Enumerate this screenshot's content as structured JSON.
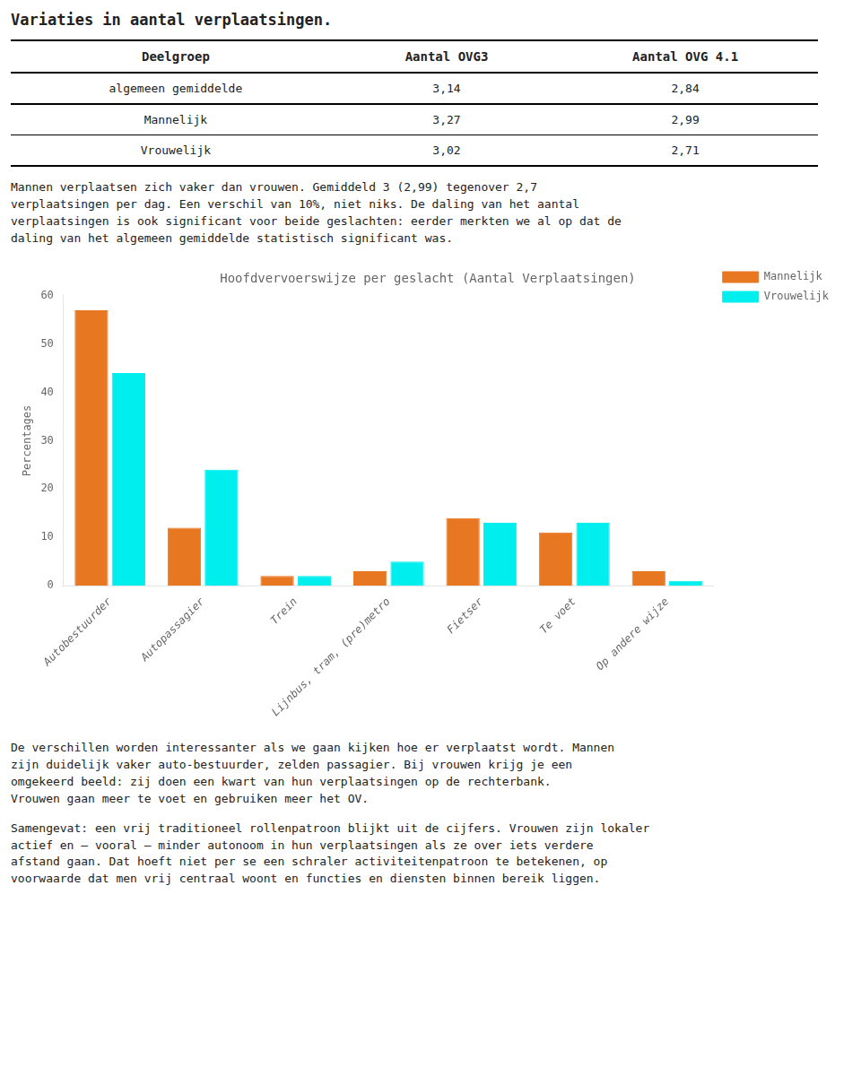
{
  "page_title": "Variaties in aantal verplaatsingen.",
  "table": {
    "headers": [
      "Deelgroep",
      "Aantal OVG3",
      "Aantal OVG 4.1"
    ],
    "rows": [
      [
        "algemeen gemiddelde",
        "3,14",
        "2,84"
      ],
      [
        "Mannelijk",
        "3,27",
        "2,99"
      ],
      [
        "Vrouwelijk",
        "3,02",
        "2,71"
      ]
    ]
  },
  "paragraphs_before": [
    [
      "Mannen verplaatsen zich vaker dan vrouwen. Gemiddeld 3 (2,99) tegenover 2,7",
      "verplaatsingen per dag. Een verschil van 10%, niet niks. De daling van het aantal",
      "verplaatsingen is ook significant voor beide geslachten: eerder merkten we al op dat de",
      "daling van het algemeen gemiddelde statistisch significant was."
    ]
  ],
  "chart_data": {
    "type": "bar",
    "title": "Hoofdvervoerswijze per geslacht (Aantal Verplaatsingen)",
    "categories": [
      "Autobestuurder",
      "Autopassagier",
      "Trein",
      "Lijnbus, tram, (pre)metro",
      "Fietser",
      "Te voet",
      "Op andere wijze"
    ],
    "series": [
      {
        "name": "Mannelijk",
        "color": "#E87722",
        "values": [
          57,
          12,
          2,
          3,
          14,
          11,
          3
        ]
      },
      {
        "name": "Vrouwelijk",
        "color": "#00EEEE",
        "values": [
          44,
          24,
          2,
          5,
          13,
          13,
          1
        ]
      }
    ],
    "ylabel": "Percentages",
    "ylim": [
      0,
      60
    ],
    "yticks": [
      0,
      10,
      20,
      30,
      40,
      50,
      60
    ],
    "grid": false,
    "legend": "right"
  },
  "paragraphs_after": [
    [
      "De verschillen worden interessanter als we gaan kijken hoe er verplaatst wordt. Mannen",
      "zijn duidelijk vaker auto-bestuurder, zelden passagier. Bij vrouwen krijg je een",
      "omgekeerd beeld: zij doen een kwart van hun verplaatsingen op de rechterbank.",
      "Vrouwen gaan meer te voet en gebruiken meer het OV."
    ],
    [
      "Samengevat: een vrij traditioneel rollenpatroon blijkt uit de cijfers. Vrouwen zijn lokaler",
      "actief en – vooral – minder autonoom in hun verplaatsingen als ze over iets verdere",
      "afstand gaan. Dat hoeft niet per se een schraler activiteitenpatroon te betekenen, op",
      "voorwaarde dat men vrij centraal woont en functies en diensten binnen bereik liggen."
    ]
  ]
}
